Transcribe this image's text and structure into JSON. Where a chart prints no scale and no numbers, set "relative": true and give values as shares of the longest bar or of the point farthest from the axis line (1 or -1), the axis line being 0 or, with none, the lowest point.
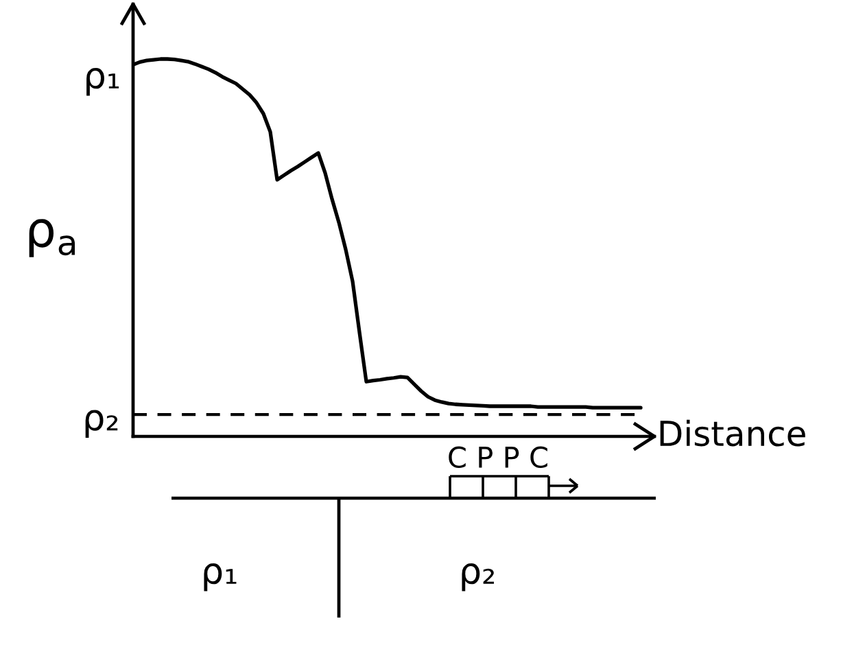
{
  "chart_data": {
    "type": "line",
    "relative": true,
    "xlabel": "Distance",
    "ylabel": "ρ$_{a}$",
    "categories": [
      null,
      null,
      null,
      null,
      null,
      null,
      null,
      null,
      null,
      null,
      null,
      null,
      null,
      null,
      null,
      null,
      null,
      null,
      null,
      null,
      null,
      null,
      null,
      null,
      null,
      null,
      null,
      null,
      null,
      null,
      null,
      null,
      null,
      null,
      null,
      null,
      null,
      null,
      null,
      null,
      null,
      null,
      null,
      null,
      null,
      null,
      null,
      null,
      null,
      null,
      null,
      null,
      null,
      null,
      null,
      null,
      null,
      null,
      null,
      null,
      null,
      null,
      null,
      null,
      null,
      null,
      null,
      null,
      null,
      null,
      null,
      null,
      null,
      null,
      null
    ],
    "series": [
      {
        "color": "#000000",
        "values": [
          0.985,
          0.992,
          0.996,
          0.998,
          1.0,
          1.0,
          0.999,
          0.996,
          0.993,
          0.987,
          0.98,
          0.973,
          0.964,
          0.953,
          0.944,
          0.935,
          0.92,
          0.905,
          0.884,
          0.855,
          0.807,
          0.68,
          0.692,
          0.704,
          0.715,
          0.727,
          0.739,
          0.751,
          0.698,
          0.629,
          0.567,
          0.495,
          0.411,
          0.276,
          0.145,
          0.148,
          0.15,
          0.153,
          0.155,
          0.158,
          0.156,
          0.138,
          0.12,
          0.105,
          0.096,
          0.091,
          0.087,
          0.085,
          0.084,
          0.083,
          0.082,
          0.081,
          0.08,
          0.08,
          0.08,
          0.08,
          0.08,
          0.08,
          0.08,
          0.078,
          0.078,
          0.078,
          0.078,
          0.078,
          0.078,
          0.078,
          0.078,
          0.076,
          0.076,
          0.076,
          0.076,
          0.076,
          0.076,
          0.076,
          0.076
        ]
      }
    ],
    "ref_lines": [
      {
        "axis": "y",
        "value": 0.058,
        "label": "ρ₂",
        "color": "#000000",
        "line_style": "dashed"
      }
    ],
    "annotations": [
      "ρ₁",
      "C P P C",
      "ρ₁",
      "ρ₂"
    ]
  }
}
